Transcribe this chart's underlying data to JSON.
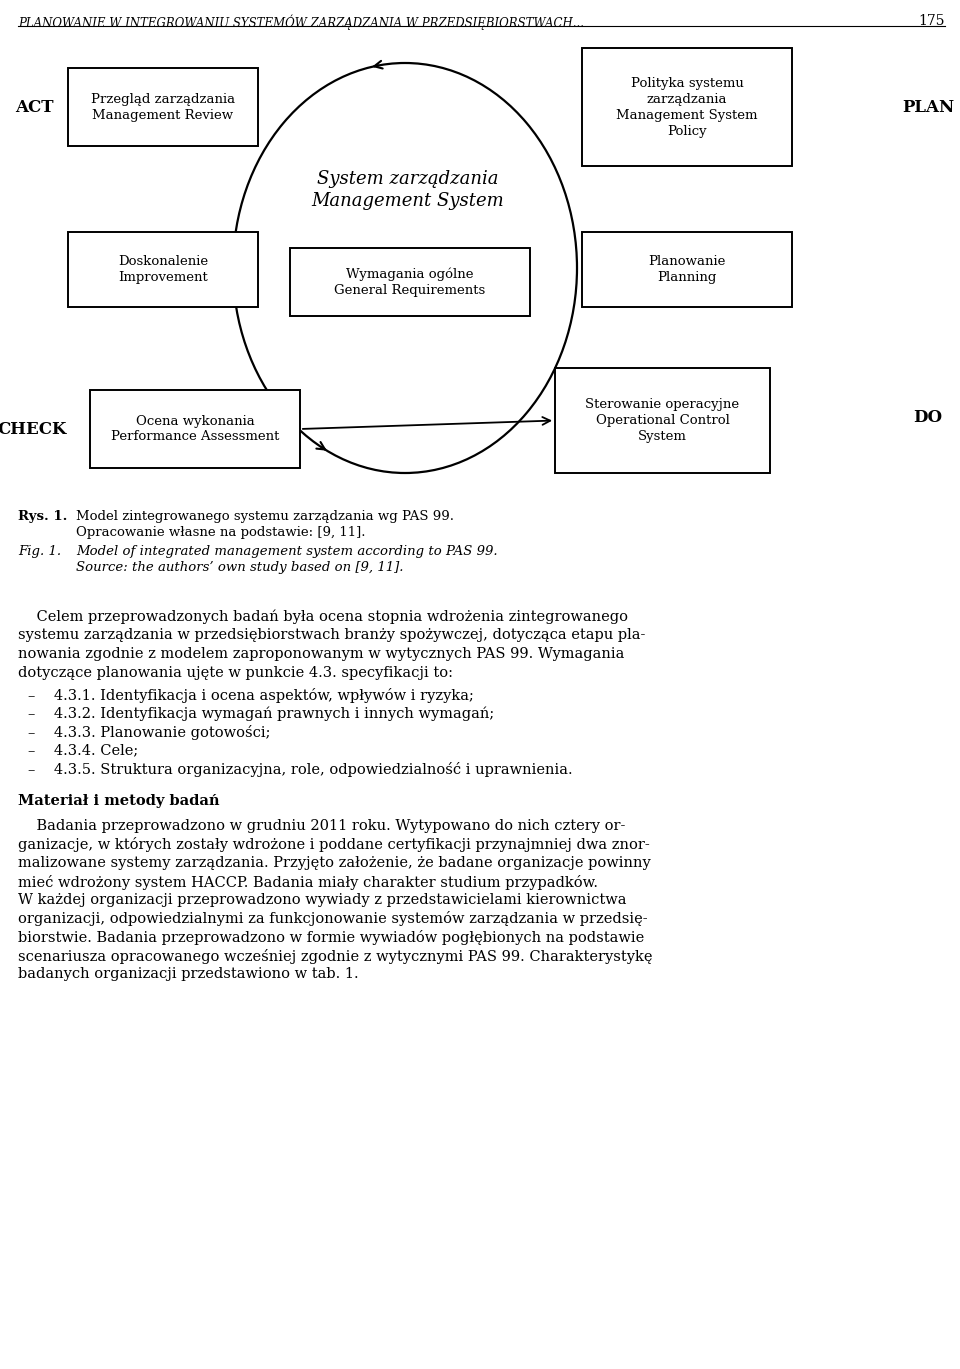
{
  "page_header": "PLANOWANIE W INTEGROWANIU SYSTEMÓW ZARZĄDZANIA W PRZEDSIĘBIORSTWACH...",
  "page_number": "175",
  "bg_color": "#ffffff",
  "text_color": "#000000",
  "diagram": {
    "act_label": "ACT",
    "plan_label": "PLAN",
    "check_label": "CHECK",
    "do_label": "DO",
    "box_top_left_lines": [
      "Przegląd zarządzania",
      "Management Review"
    ],
    "box_top_right_lines": [
      "Polityka systemu",
      "zarządzania",
      "Management System",
      "Policy"
    ],
    "box_mid_left_lines": [
      "Doskonalenie",
      "Improvement"
    ],
    "box_mid_right_lines": [
      "Planowanie",
      "Planning"
    ],
    "box_center_outer_lines": [
      "System zarządzania",
      "Management System"
    ],
    "box_center_inner_lines": [
      "Wymagania ogólne",
      "General Requirements"
    ],
    "box_bot_left_lines": [
      "Ocena wykonania",
      "Performance Assessment"
    ],
    "box_bot_right_lines": [
      "Sterowanie operacyjne",
      "Operational Control",
      "System"
    ]
  },
  "caption_pl_label": "Rys. 1.",
  "caption_pl_text1": "Model zintegrowanego systemu zarządzania wg PAS 99.",
  "caption_pl_text2": "Opracowanie własne na podstawie: [9, 11].",
  "caption_en_label": "Fig. 1.",
  "caption_en_text1": "Model of integrated management system according to PAS 99.",
  "caption_en_text2": "Source: the authors’ own study based on [9, 11].",
  "body_para1_lines": [
    "    Celem przeprowadzonych badań była ocena stopnia wdrożenia zintegrowanego",
    "systemu zarządzania w przedsiębiorstwach branży spożywczej, dotycząca etapu pla-",
    "nowania zgodnie z modelem zaproponowanym w wytycznych PAS 99. Wymagania",
    "dotyczące planowania ujęte w punkcie 4.3. specyfikacji to:"
  ],
  "bullets": [
    "–    4.3.1. Identyfikacja i ocena aspektów, wpływów i ryzyka;",
    "–    4.3.2. Identyfikacja wymagań prawnych i innych wymagań;",
    "–    4.3.3. Planowanie gotowości;",
    "–    4.3.4. Cele;",
    "–    4.3.5. Struktura organizacyjna, role, odpowiedzialność i uprawnienia."
  ],
  "section_header": "Materiał i metody badań",
  "section_body_lines": [
    "    Badania przeprowadzono w grudniu 2011 roku. Wytypowano do nich cztery or-",
    "ganizacje, w których zostały wdrożone i poddane certyfikacji przynajmniej dwa znor-",
    "malizowane systemy zarządzania. Przyjęto założenie, że badane organizacje powinny",
    "mieć wdrożony system HACCP. Badania miały charakter studium przypadków.",
    "W każdej organizacji przeprowadzono wywiady z przedstawicielami kierownictwa",
    "organizacji, odpowiedzialnymi za funkcjonowanie systemów zarządzania w przedsię-",
    "biorstwie. Badania przeprowadzono w formie wywiadów pogłębionych na podstawie",
    "scenariusza opracowanego wcześniej zgodnie z wytycznymi PAS 99. Charakterystykę",
    "badanych organizacji przedstawiono w tab. 1."
  ]
}
